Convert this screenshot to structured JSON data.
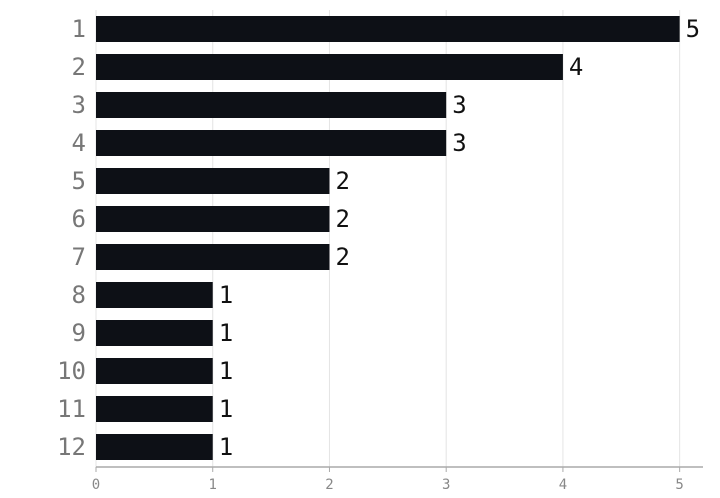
{
  "chart_data": {
    "type": "hbar",
    "categories": [
      "1",
      "2",
      "3",
      "4",
      "5",
      "6",
      "7",
      "8",
      "9",
      "10",
      "11",
      "12"
    ],
    "values": [
      5,
      4,
      3,
      3,
      2,
      2,
      2,
      1,
      1,
      1,
      1,
      1
    ],
    "color": "#0d1016",
    "xlim": [
      0,
      5.2
    ],
    "xticks": [
      0,
      1,
      2,
      3,
      4,
      5
    ],
    "grid": true
  }
}
